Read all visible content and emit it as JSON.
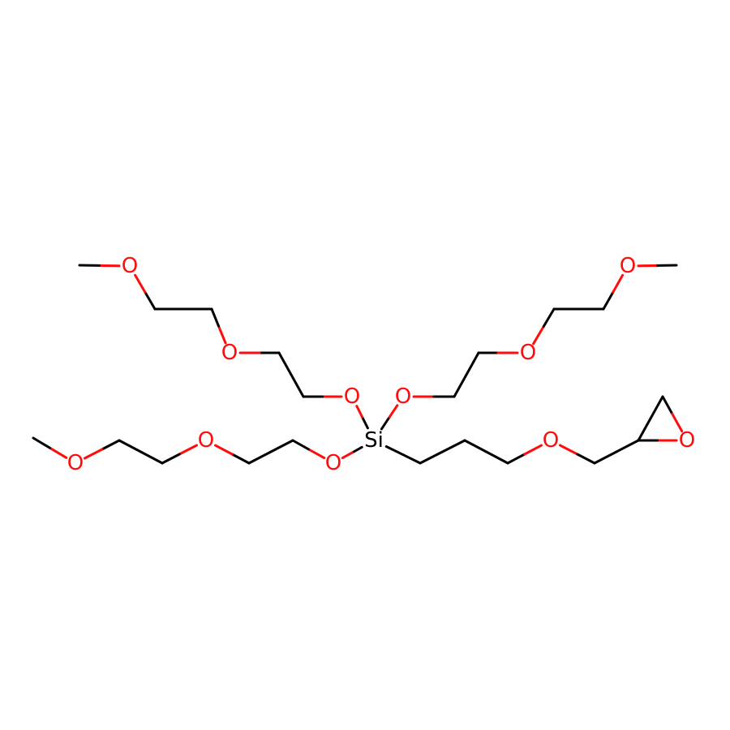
{
  "colors": {
    "carbon_bond": "#000000",
    "oxygen": "#ff0d0d",
    "silicon": "#000000",
    "background": "#ffffff"
  },
  "atoms": [
    {
      "id": "Si",
      "label": "Si",
      "element": "Si"
    },
    {
      "id": "O1",
      "label": "O",
      "element": "O"
    },
    {
      "id": "O2",
      "label": "O",
      "element": "O"
    },
    {
      "id": "O3",
      "label": "O",
      "element": "O"
    },
    {
      "id": "O4",
      "label": "O",
      "element": "O"
    },
    {
      "id": "O5",
      "label": "O",
      "element": "O"
    },
    {
      "id": "O6",
      "label": "O",
      "element": "O"
    },
    {
      "id": "O7",
      "label": "O",
      "element": "O"
    },
    {
      "id": "O8",
      "label": "O",
      "element": "O"
    },
    {
      "id": "O9",
      "label": "O",
      "element": "O"
    },
    {
      "id": "O10",
      "label": "O",
      "element": "O"
    },
    {
      "id": "O11",
      "label": "O",
      "element": "O"
    }
  ]
}
